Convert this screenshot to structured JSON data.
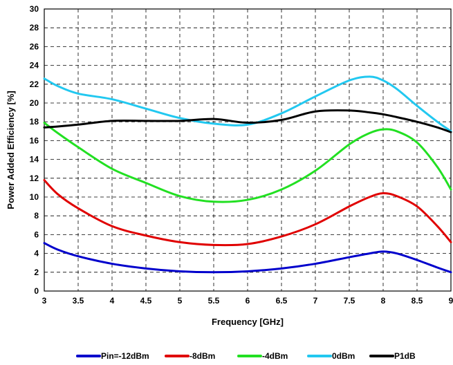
{
  "chart_data": {
    "type": "line",
    "title": "",
    "xlabel": "Frequency  [GHz]",
    "ylabel": "Power Added Efficiency  [%]",
    "xlim": [
      3,
      9
    ],
    "ylim": [
      0,
      30
    ],
    "xticks": [
      3,
      3.5,
      4,
      4.5,
      5,
      5.5,
      6,
      6.5,
      7,
      7.5,
      8,
      8.5,
      9
    ],
    "xtick_labels": [
      "3",
      "3.5",
      "4",
      "4.5",
      "5",
      "5.5",
      "6",
      "6.5",
      "7",
      "7.5",
      "8",
      "8.5",
      "9"
    ],
    "yticks": [
      0,
      2,
      4,
      6,
      8,
      10,
      12,
      14,
      16,
      18,
      20,
      22,
      24,
      26,
      28,
      30
    ],
    "ytick_labels": [
      "0",
      "2",
      "4",
      "6",
      "8",
      "10",
      "12",
      "14",
      "16",
      "18",
      "20",
      "22",
      "24",
      "26",
      "28",
      "30"
    ],
    "grid": true,
    "legend_position": "bottom",
    "x": [
      3.0,
      3.2,
      3.5,
      4.0,
      4.5,
      5.0,
      5.5,
      6.0,
      6.5,
      7.0,
      7.5,
      7.8,
      8.0,
      8.2,
      8.5,
      8.8,
      9.0
    ],
    "series": [
      {
        "name": "Pin=-12dBm",
        "color": "#0000cc",
        "values": [
          5.1,
          4.4,
          3.7,
          2.9,
          2.4,
          2.1,
          2.0,
          2.1,
          2.4,
          2.9,
          3.6,
          4.0,
          4.2,
          4.0,
          3.3,
          2.5,
          2.0
        ]
      },
      {
        "name": "-8dBm",
        "color": "#e00000",
        "values": [
          11.8,
          10.3,
          8.8,
          6.9,
          5.9,
          5.2,
          4.9,
          5.0,
          5.8,
          7.1,
          9.0,
          10.0,
          10.4,
          10.1,
          9.0,
          6.9,
          5.2
        ]
      },
      {
        "name": "-4dBm",
        "color": "#22e022",
        "values": [
          17.9,
          16.8,
          15.3,
          13.0,
          11.5,
          10.1,
          9.5,
          9.7,
          10.8,
          12.8,
          15.6,
          16.8,
          17.2,
          17.0,
          15.8,
          13.2,
          10.8
        ]
      },
      {
        "name": "0dBm",
        "color": "#22c8f0",
        "values": [
          22.6,
          21.8,
          21.0,
          20.4,
          19.4,
          18.4,
          17.8,
          17.7,
          18.9,
          20.7,
          22.4,
          22.8,
          22.4,
          21.5,
          19.7,
          18.0,
          17.0
        ]
      },
      {
        "name": "P1dB",
        "color": "#000000",
        "values": [
          17.4,
          17.5,
          17.7,
          18.1,
          18.1,
          18.1,
          18.3,
          17.9,
          18.2,
          19.1,
          19.2,
          19.0,
          18.8,
          18.5,
          18.0,
          17.4,
          16.9
        ]
      }
    ]
  }
}
